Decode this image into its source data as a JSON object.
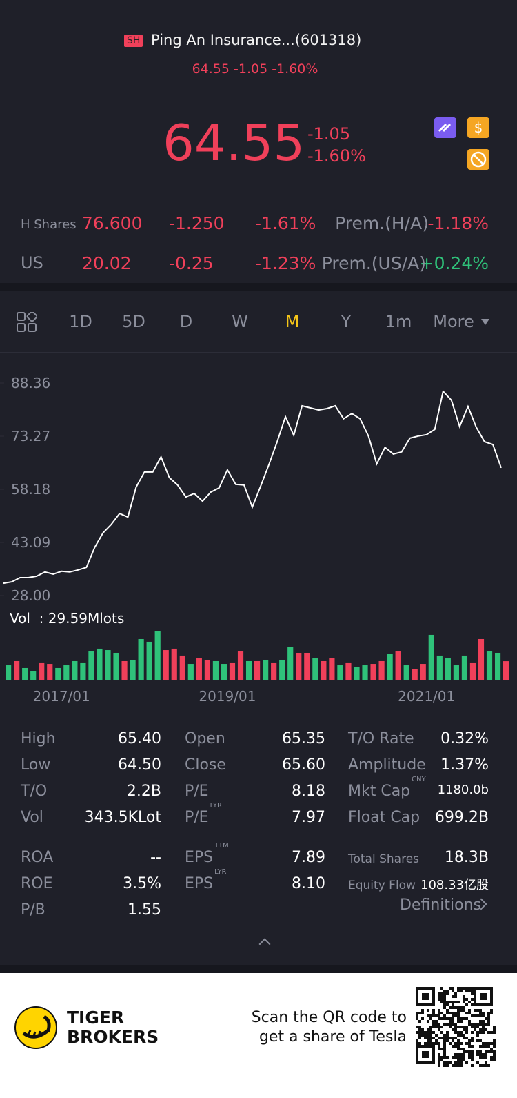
{
  "header": {
    "badge": "SH",
    "title": "Ping An Insurance...(601318)",
    "subline": "64.55 -1.05 -1.60%"
  },
  "quote": {
    "price": "64.55",
    "change": "-1.05",
    "pct": "-1.60%"
  },
  "related": {
    "rows": [
      [
        "H Shares",
        "76.600",
        "-1.250",
        "-1.61%",
        "Prem.(H/A)",
        "-1.18%"
      ],
      [
        "US",
        "20.02",
        "-0.25",
        "-1.23%",
        "Prem.(US/A)",
        "+0.24%"
      ]
    ]
  },
  "tabs": {
    "items": [
      "1D",
      "5D",
      "D",
      "W",
      "M",
      "Y",
      "1m",
      "More"
    ],
    "active": "M"
  },
  "chart_data": {
    "type": "line",
    "color": "#ffffff",
    "categories": [
      null,
      null,
      null,
      null,
      null,
      null,
      null,
      "2017/01",
      null,
      null,
      null,
      null,
      null,
      null,
      null,
      null,
      null,
      null,
      null,
      null,
      null,
      null,
      null,
      null,
      null,
      null,
      null,
      "2019/01",
      null,
      null,
      null,
      null,
      null,
      null,
      null,
      null,
      null,
      null,
      null,
      null,
      null,
      null,
      null,
      null,
      null,
      null,
      null,
      null,
      null,
      null,
      null,
      "2021/01",
      null,
      null,
      null,
      null,
      null,
      null,
      null,
      null,
      null
    ],
    "values": [
      31.5,
      31.9,
      33.1,
      33.1,
      33.5,
      34.7,
      34.1,
      34.9,
      34.7,
      35.3,
      36.0,
      41.7,
      45.8,
      48.2,
      51.3,
      50.3,
      58.8,
      63.1,
      63.1,
      67.4,
      61.5,
      59.4,
      56.0,
      57.0,
      54.8,
      57.4,
      58.6,
      63.7,
      59.6,
      59.4,
      53.1,
      59.0,
      65.2,
      71.7,
      78.8,
      73.5,
      81.9,
      81.3,
      80.7,
      81.1,
      81.9,
      78.2,
      79.7,
      78.2,
      73.3,
      65.4,
      70.1,
      68.2,
      68.8,
      72.7,
      73.3,
      73.7,
      75.2,
      86.0,
      83.5,
      76.0,
      81.7,
      75.8,
      71.7,
      70.9,
      64.3
    ],
    "ylim": [
      28.0,
      88.36
    ],
    "yticks": [
      {
        "value": 28.0,
        "label": "28.00"
      },
      43.09,
      58.18,
      73.27,
      88.36
    ],
    "volume_label": "Vol  : 29.59Mlots",
    "volume": [
      23.3,
      29.7,
      19.1,
      14.8,
      27.6,
      25.4,
      19.1,
      23.3,
      29.7,
      27.6,
      44.5,
      48.8,
      46.6,
      42.4,
      29.7,
      31.8,
      63.6,
      59.4,
      76.3,
      46.6,
      48.8,
      38.2,
      25.4,
      33.9,
      31.8,
      29.7,
      25.4,
      27.6,
      44.5,
      29.7,
      29.7,
      31.8,
      27.6,
      31.8,
      50.9,
      42.4,
      42.4,
      33.9,
      29.7,
      33.9,
      23.3,
      27.6,
      21.2,
      23.3,
      25.4,
      29.7,
      40.3,
      44.5,
      23.3,
      17.0,
      25.4,
      70.0,
      38.2,
      33.9,
      23.3,
      38.2,
      27.6,
      63.6,
      44.5,
      42.4,
      29.59
    ],
    "volume_colors": [
      "#2fc27a",
      "#f0405a",
      "#2fc27a",
      "#2fc27a",
      "#f0405a",
      "#f0405a",
      "#2fc27a",
      "#2fc27a",
      "#2fc27a",
      "#2fc27a",
      "#2fc27a",
      "#2fc27a",
      "#2fc27a",
      "#2fc27a",
      "#f0405a",
      "#2fc27a",
      "#2fc27a",
      "#2fc27a",
      "#2fc27a",
      "#f0405a",
      "#f0405a",
      "#f0405a",
      "#2fc27a",
      "#f0405a",
      "#f0405a",
      "#2fc27a",
      "#2fc27a",
      "#f0405a",
      "#f0405a",
      "#2fc27a",
      "#f0405a",
      "#2fc27a",
      "#f0405a",
      "#2fc27a",
      "#2fc27a",
      "#f0405a",
      "#f0405a",
      "#2fc27a",
      "#f0405a",
      "#f0405a",
      "#2fc27a",
      "#f0405a",
      "#2fc27a",
      "#2fc27a",
      "#f0405a",
      "#f0405a",
      "#2fc27a",
      "#f0405a",
      "#2fc27a",
      "#f0405a",
      "#f0405a",
      "#2fc27a",
      "#2fc27a",
      "#2fc27a",
      "#2fc27a",
      "#2fc27a",
      "#f0405a",
      "#f0405a",
      "#2fc27a",
      "#2fc27a",
      "#f0405a"
    ]
  },
  "stats": {
    "columns": [
      [
        {
          "label": "High",
          "value": "65.40"
        },
        {
          "label": "Low",
          "value": "64.50"
        },
        {
          "label": "T/O",
          "value": "2.2B"
        },
        {
          "label": "Vol",
          "value": "343.5KLot"
        },
        {
          "label": "ROA",
          "value": "--"
        },
        {
          "label": "ROE",
          "value": "3.5%"
        },
        {
          "label": "P/B",
          "value": "1.55"
        }
      ],
      [
        {
          "label": "Open",
          "value": "65.35"
        },
        {
          "label": "Close",
          "value": "65.60"
        },
        {
          "label": "P/E",
          "value": "8.18"
        },
        {
          "label": "P/E",
          "sup": "LYR",
          "value": "7.97"
        },
        {
          "label": "EPS",
          "sup": "TTM",
          "value": "7.89"
        },
        {
          "label": "EPS",
          "sup": "LYR",
          "value": "8.10"
        }
      ],
      [
        {
          "label": "T/O Rate",
          "value": "0.32%"
        },
        {
          "label": "Amplitude",
          "value": "1.37%"
        },
        {
          "label": "Mkt Cap",
          "sup": "CNY",
          "value": "1180.0b"
        },
        {
          "label": "Float Cap",
          "value": "699.2B"
        },
        {
          "label": "Total Shares",
          "value": "18.3B"
        },
        {
          "label": "Equity Flow",
          "value": "108.33亿股"
        }
      ]
    ],
    "definitions": "Definitions"
  },
  "footer": {
    "brand": [
      "TIGER",
      "BROKERS"
    ],
    "scan": [
      "Scan the QR code to",
      "get a share of Tesla"
    ]
  }
}
